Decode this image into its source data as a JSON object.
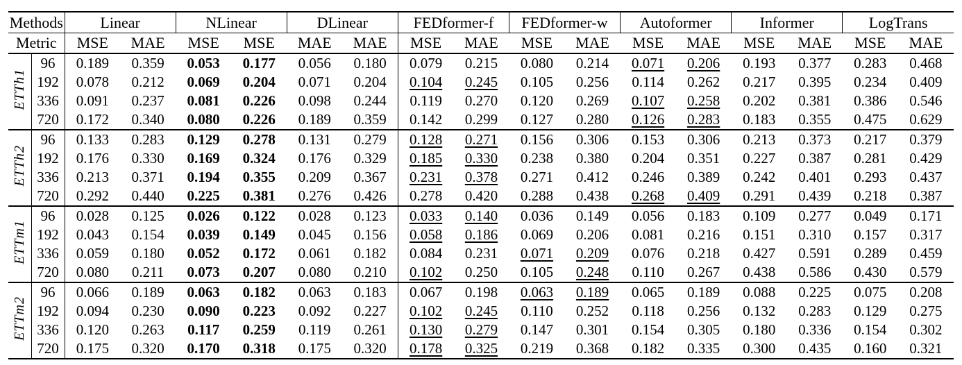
{
  "table": {
    "header": {
      "methods_label": "Methods",
      "metric_label": "Metric",
      "groups": [
        "Linear",
        "NLinear",
        "DLinear",
        "FEDformer-f",
        "FEDformer-w",
        "Autoformer",
        "Informer",
        "LogTrans"
      ],
      "metrics": [
        "MSE",
        "MAE",
        "MSE",
        "MSE",
        "MAE",
        "MAE",
        "MSE",
        "MAE",
        "MSE",
        "MAE",
        "MSE",
        "MAE",
        "MSE",
        "MAE",
        "MSE",
        "MAE"
      ]
    },
    "bold_columns": [
      2,
      3
    ],
    "blocks": [
      {
        "dataset": "ETTh1",
        "rows": [
          {
            "horizon": "96",
            "values": [
              "0.189",
              "0.359",
              "0.053",
              "0.177",
              "0.056",
              "0.180",
              "0.079",
              "0.215",
              "0.080",
              "0.214",
              "0.071",
              "0.206",
              "0.193",
              "0.377",
              "0.283",
              "0.468"
            ],
            "underline": [
              10,
              11
            ]
          },
          {
            "horizon": "192",
            "values": [
              "0.078",
              "0.212",
              "0.069",
              "0.204",
              "0.071",
              "0.204",
              "0.104",
              "0.245",
              "0.105",
              "0.256",
              "0.114",
              "0.262",
              "0.217",
              "0.395",
              "0.234",
              "0.409"
            ],
            "underline": [
              6,
              7
            ]
          },
          {
            "horizon": "336",
            "values": [
              "0.091",
              "0.237",
              "0.081",
              "0.226",
              "0.098",
              "0.244",
              "0.119",
              "0.270",
              "0.120",
              "0.269",
              "0.107",
              "0.258",
              "0.202",
              "0.381",
              "0.386",
              "0.546"
            ],
            "underline": [
              10,
              11
            ]
          },
          {
            "horizon": "720",
            "values": [
              "0.172",
              "0.340",
              "0.080",
              "0.226",
              "0.189",
              "0.359",
              "0.142",
              "0.299",
              "0.127",
              "0.280",
              "0.126",
              "0.283",
              "0.183",
              "0.355",
              "0.475",
              "0.629"
            ],
            "underline": [
              10,
              11
            ]
          }
        ]
      },
      {
        "dataset": "ETTh2",
        "rows": [
          {
            "horizon": "96",
            "values": [
              "0.133",
              "0.283",
              "0.129",
              "0.278",
              "0.131",
              "0.279",
              "0.128",
              "0.271",
              "0.156",
              "0.306",
              "0.153",
              "0.306",
              "0.213",
              "0.373",
              "0.217",
              "0.379"
            ],
            "underline": [
              6,
              7
            ]
          },
          {
            "horizon": "192",
            "values": [
              "0.176",
              "0.330",
              "0.169",
              "0.324",
              "0.176",
              "0.329",
              "0.185",
              "0.330",
              "0.238",
              "0.380",
              "0.204",
              "0.351",
              "0.227",
              "0.387",
              "0.281",
              "0.429"
            ],
            "underline": [
              6,
              7
            ]
          },
          {
            "horizon": "336",
            "values": [
              "0.213",
              "0.371",
              "0.194",
              "0.355",
              "0.209",
              "0.367",
              "0.231",
              "0.378",
              "0.271",
              "0.412",
              "0.246",
              "0.389",
              "0.242",
              "0.401",
              "0.293",
              "0.437"
            ],
            "underline": [
              6,
              7
            ]
          },
          {
            "horizon": "720",
            "values": [
              "0.292",
              "0.440",
              "0.225",
              "0.381",
              "0.276",
              "0.426",
              "0.278",
              "0.420",
              "0.288",
              "0.438",
              "0.268",
              "0.409",
              "0.291",
              "0.439",
              "0.218",
              "0.387"
            ],
            "underline": [
              10,
              11
            ]
          }
        ]
      },
      {
        "dataset": "ETTm1",
        "rows": [
          {
            "horizon": "96",
            "values": [
              "0.028",
              "0.125",
              "0.026",
              "0.122",
              "0.028",
              "0.123",
              "0.033",
              "0.140",
              "0.036",
              "0.149",
              "0.056",
              "0.183",
              "0.109",
              "0.277",
              "0.049",
              "0.171"
            ],
            "underline": [
              6,
              7
            ]
          },
          {
            "horizon": "192",
            "values": [
              "0.043",
              "0.154",
              "0.039",
              "0.149",
              "0.045",
              "0.156",
              "0.058",
              "0.186",
              "0.069",
              "0.206",
              "0.081",
              "0.216",
              "0.151",
              "0.310",
              "0.157",
              "0.317"
            ],
            "underline": [
              6,
              7
            ]
          },
          {
            "horizon": "336",
            "values": [
              "0.059",
              "0.180",
              "0.052",
              "0.172",
              "0.061",
              "0.182",
              "0.084",
              "0.231",
              "0.071",
              "0.209",
              "0.076",
              "0.218",
              "0.427",
              "0.591",
              "0.289",
              "0.459"
            ],
            "underline": [
              8,
              9
            ]
          },
          {
            "horizon": "720",
            "values": [
              "0.080",
              "0.211",
              "0.073",
              "0.207",
              "0.080",
              "0.210",
              "0.102",
              "0.250",
              "0.105",
              "0.248",
              "0.110",
              "0.267",
              "0.438",
              "0.586",
              "0.430",
              "0.579"
            ],
            "underline": [
              6,
              9
            ]
          }
        ]
      },
      {
        "dataset": "ETTm2",
        "rows": [
          {
            "horizon": "96",
            "values": [
              "0.066",
              "0.189",
              "0.063",
              "0.182",
              "0.063",
              "0.183",
              "0.067",
              "0.198",
              "0.063",
              "0.189",
              "0.065",
              "0.189",
              "0.088",
              "0.225",
              "0.075",
              "0.208"
            ],
            "underline": [
              8,
              9
            ]
          },
          {
            "horizon": "192",
            "values": [
              "0.094",
              "0.230",
              "0.090",
              "0.223",
              "0.092",
              "0.227",
              "0.102",
              "0.245",
              "0.110",
              "0.252",
              "0.118",
              "0.256",
              "0.132",
              "0.283",
              "0.129",
              "0.275"
            ],
            "underline": [
              6,
              7
            ]
          },
          {
            "horizon": "336",
            "values": [
              "0.120",
              "0.263",
              "0.117",
              "0.259",
              "0.119",
              "0.261",
              "0.130",
              "0.279",
              "0.147",
              "0.301",
              "0.154",
              "0.305",
              "0.180",
              "0.336",
              "0.154",
              "0.302"
            ],
            "underline": [
              6,
              7
            ]
          },
          {
            "horizon": "720",
            "values": [
              "0.175",
              "0.320",
              "0.170",
              "0.318",
              "0.175",
              "0.320",
              "0.178",
              "0.325",
              "0.219",
              "0.368",
              "0.182",
              "0.335",
              "0.300",
              "0.435",
              "0.160",
              "0.321"
            ],
            "underline": [
              6,
              7
            ]
          }
        ]
      }
    ]
  }
}
